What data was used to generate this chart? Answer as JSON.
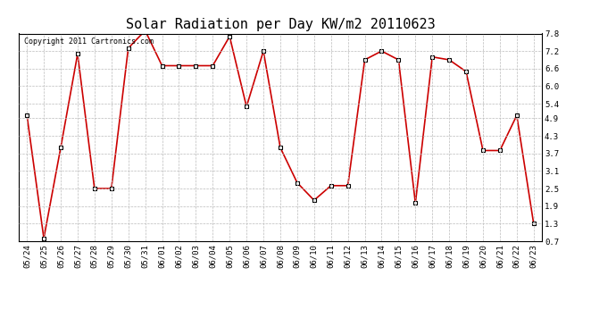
{
  "title": "Solar Radiation per Day KW/m2 20110623",
  "copyright_text": "Copyright 2011 Cartronics.com",
  "dates": [
    "05/24",
    "05/25",
    "05/26",
    "05/27",
    "05/28",
    "05/29",
    "05/30",
    "05/31",
    "06/01",
    "06/02",
    "06/03",
    "06/04",
    "06/05",
    "06/06",
    "06/07",
    "06/08",
    "06/09",
    "06/10",
    "06/11",
    "06/12",
    "06/13",
    "06/14",
    "06/15",
    "06/16",
    "06/17",
    "06/18",
    "06/19",
    "06/20",
    "06/21",
    "06/22",
    "06/23"
  ],
  "values": [
    5.0,
    0.8,
    3.9,
    7.1,
    2.5,
    2.5,
    7.3,
    7.9,
    6.7,
    6.7,
    6.7,
    6.7,
    7.7,
    5.3,
    7.2,
    3.9,
    2.7,
    2.1,
    2.6,
    2.6,
    6.9,
    7.2,
    6.9,
    2.0,
    7.0,
    6.9,
    6.5,
    3.8,
    3.8,
    5.0,
    1.3
  ],
  "ylim": [
    0.7,
    7.8
  ],
  "yticks": [
    0.7,
    1.3,
    1.9,
    2.5,
    3.1,
    3.7,
    4.3,
    4.9,
    5.4,
    6.0,
    6.6,
    7.2,
    7.8
  ],
  "line_color": "#cc0000",
  "marker": "s",
  "marker_size": 3,
  "background_color": "#ffffff",
  "grid_color": "#bbbbbb",
  "title_fontsize": 11,
  "tick_label_fontsize": 6.5,
  "copyright_fontsize": 6
}
